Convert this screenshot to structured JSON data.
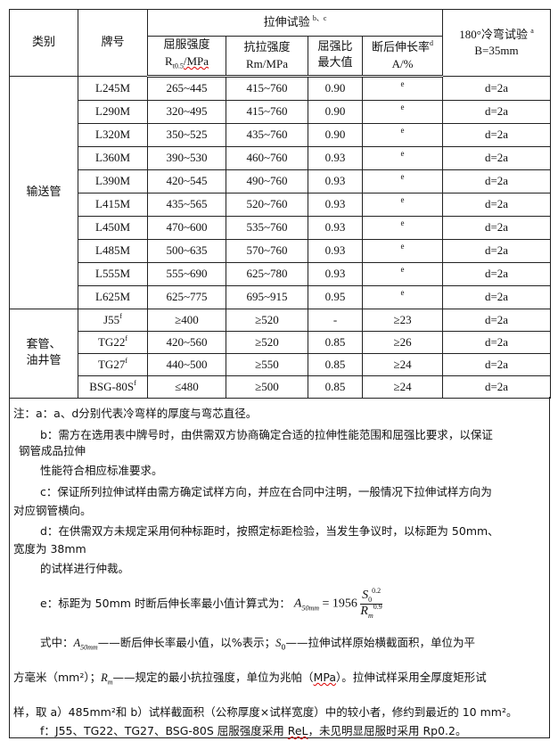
{
  "header": {
    "category": "类别",
    "grade": "牌号",
    "tensile": "拉伸试验",
    "tensile_sup": "b、c",
    "bend": "180°冷弯试验",
    "bend_sup": "a",
    "bend_b": "B=35mm",
    "yield": "屈服强度",
    "yield_unit_r": "R",
    "yield_unit_sub": "t0.5",
    "yield_unit_rest": "/MPa",
    "tensile_str": "抗拉强度",
    "tensile_unit": "Rm/MPa",
    "ratio": "屈强比",
    "ratio2": "最大值",
    "elong": "断后伸长率",
    "elong_sup": "d",
    "elong_unit": "A/%"
  },
  "groups": [
    {
      "category": "输送管",
      "rows": [
        {
          "grade": "L245M",
          "sup": "",
          "yield": "265~445",
          "tensile": "415~760",
          "ratio": "0.90",
          "elong": "e",
          "bend": "d=2a"
        },
        {
          "grade": "L290M",
          "sup": "",
          "yield": "320~495",
          "tensile": "415~760",
          "ratio": "0.90",
          "elong": "e",
          "bend": "d=2a"
        },
        {
          "grade": "L320M",
          "sup": "",
          "yield": "350~525",
          "tensile": "435~760",
          "ratio": "0.90",
          "elong": "e",
          "bend": "d=2a"
        },
        {
          "grade": "L360M",
          "sup": "",
          "yield": "390~530",
          "tensile": "460~760",
          "ratio": "0.93",
          "elong": "e",
          "bend": "d=2a"
        },
        {
          "grade": "L390M",
          "sup": "",
          "yield": "420~545",
          "tensile": "490~760",
          "ratio": "0.93",
          "elong": "e",
          "bend": "d=2a"
        },
        {
          "grade": "L415M",
          "sup": "",
          "yield": "435~565",
          "tensile": "520~760",
          "ratio": "0.93",
          "elong": "e",
          "bend": "d=2a"
        },
        {
          "grade": "L450M",
          "sup": "",
          "yield": "470~600",
          "tensile": "535~760",
          "ratio": "0.93",
          "elong": "e",
          "bend": "d=2a"
        },
        {
          "grade": "L485M",
          "sup": "",
          "yield": "500~635",
          "tensile": "570~760",
          "ratio": "0.93",
          "elong": "e",
          "bend": "d=2a"
        },
        {
          "grade": "L555M",
          "sup": "",
          "yield": "555~690",
          "tensile": "625~780",
          "ratio": "0.93",
          "elong": "e",
          "bend": "d=2a"
        },
        {
          "grade": "L625M",
          "sup": "",
          "yield": "625~775",
          "tensile": "695~915",
          "ratio": "0.95",
          "elong": "e",
          "bend": "d=2a"
        }
      ]
    },
    {
      "category": "套管、\n油井管",
      "rows": [
        {
          "grade": "J55",
          "sup": "f",
          "yield": "≥400",
          "tensile": "≥520",
          "ratio": "-",
          "elong": "≥23",
          "bend": "d=2a"
        },
        {
          "grade": "TG22",
          "sup": "f",
          "yield": "420~560",
          "tensile": "≥520",
          "ratio": "0.85",
          "elong": "≥26",
          "bend": "d=2a"
        },
        {
          "grade": "TG27",
          "sup": "f",
          "yield": "440~500",
          "tensile": "≥550",
          "ratio": "0.85",
          "elong": "≥24",
          "bend": "d=2a"
        },
        {
          "grade": "BSG-80S",
          "sup": "f",
          "yield": "≤480",
          "tensile": "≥500",
          "ratio": "0.85",
          "elong": "≥24",
          "bend": "d=2a"
        }
      ]
    }
  ],
  "notes": {
    "a": "注：a：a、d分别代表冷弯样的厚度与弯芯直径。",
    "b1": "b：需方在选用表中牌号时，由供需双方协商确定合适的拉伸性能范围和屈强比要求，以保证",
    "b2": "钢管成品拉伸",
    "b3": "性能符合相应标准要求。",
    "c1": "c：保证所列拉伸试样由需方确定试样方向，并应在合同中注明，一般情况下拉伸试样方向为",
    "c2": "对应钢管横向。",
    "d1": "d：在供需双方未规定采用何种标距时，按照定标距检验，当发生争议时，以标距为 50mm、",
    "d2": "宽度为 38mm",
    "d3": "的试样进行仲裁。",
    "e1": "e：标距为 50mm 时断后伸长率最小值计算式为：",
    "formula": "A50mm = 1956 S0^0.2 / Rm^0.9",
    "e2a": "式中：",
    "e2b": "——断后伸长率最小值，以%表示；",
    "e2c": "——拉伸试样原始横截面积，单位为平",
    "e3a": "方毫米（mm²）；",
    "e3b": "——规定的最小抗拉强度，单位为兆帕（",
    "e3mpa": "MPa",
    "e3c": "）。拉伸试样采用全厚度矩形试",
    "e4": "样，取 a）485mm²和 b）试样截面积（公称厚度×试样宽度）中的较小者，修约到最近的 10 mm²。",
    "f1": "f：J55、TG22、TG27、BSG-80S 屈服强度采用 ",
    "f_rel": "ReL",
    "f2": "，未见明显屈服时采用 Rp0.2。"
  }
}
